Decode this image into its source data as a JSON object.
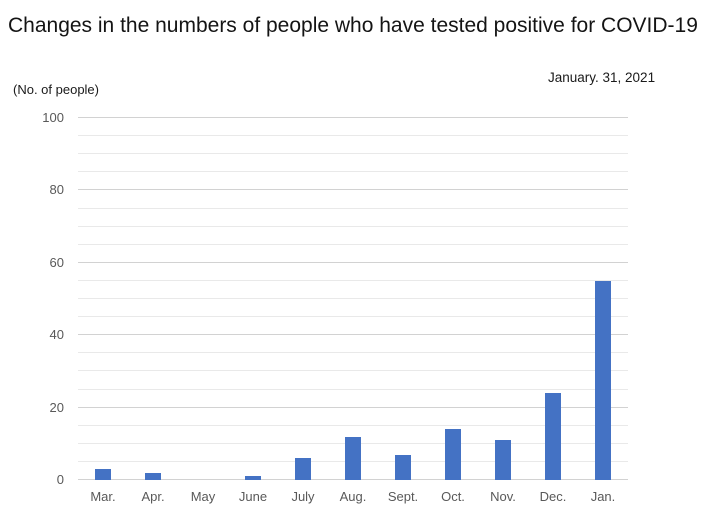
{
  "header": {
    "title": "Changes in the numbers of people who have tested positive for COVID-19",
    "unit_label": "(No. of people)",
    "date_label": "January. 31, 2021"
  },
  "colors": {
    "bar": "#4472C4",
    "axis_text": "#595959",
    "gridline_minor": "#e9e9e9",
    "gridline_major": "#d2d2d2"
  },
  "chart_data": {
    "type": "bar",
    "title": "Changes in the numbers of people who have tested positive for COVID-19",
    "subtitle": "January. 31, 2021",
    "categories": [
      "Mar.",
      "Apr.",
      "May",
      "June",
      "July",
      "Aug.",
      "Sept.",
      "Oct.",
      "Nov.",
      "Dec.",
      "Jan."
    ],
    "values": [
      3,
      2,
      0,
      1,
      6,
      12,
      7,
      14,
      11,
      24,
      55
    ],
    "xlabel": "",
    "ylabel": "(No. of people)",
    "ylim": [
      0,
      100
    ],
    "ytick_interval": 20,
    "minor_grid_interval": 5,
    "grid": true,
    "legend": "none"
  }
}
